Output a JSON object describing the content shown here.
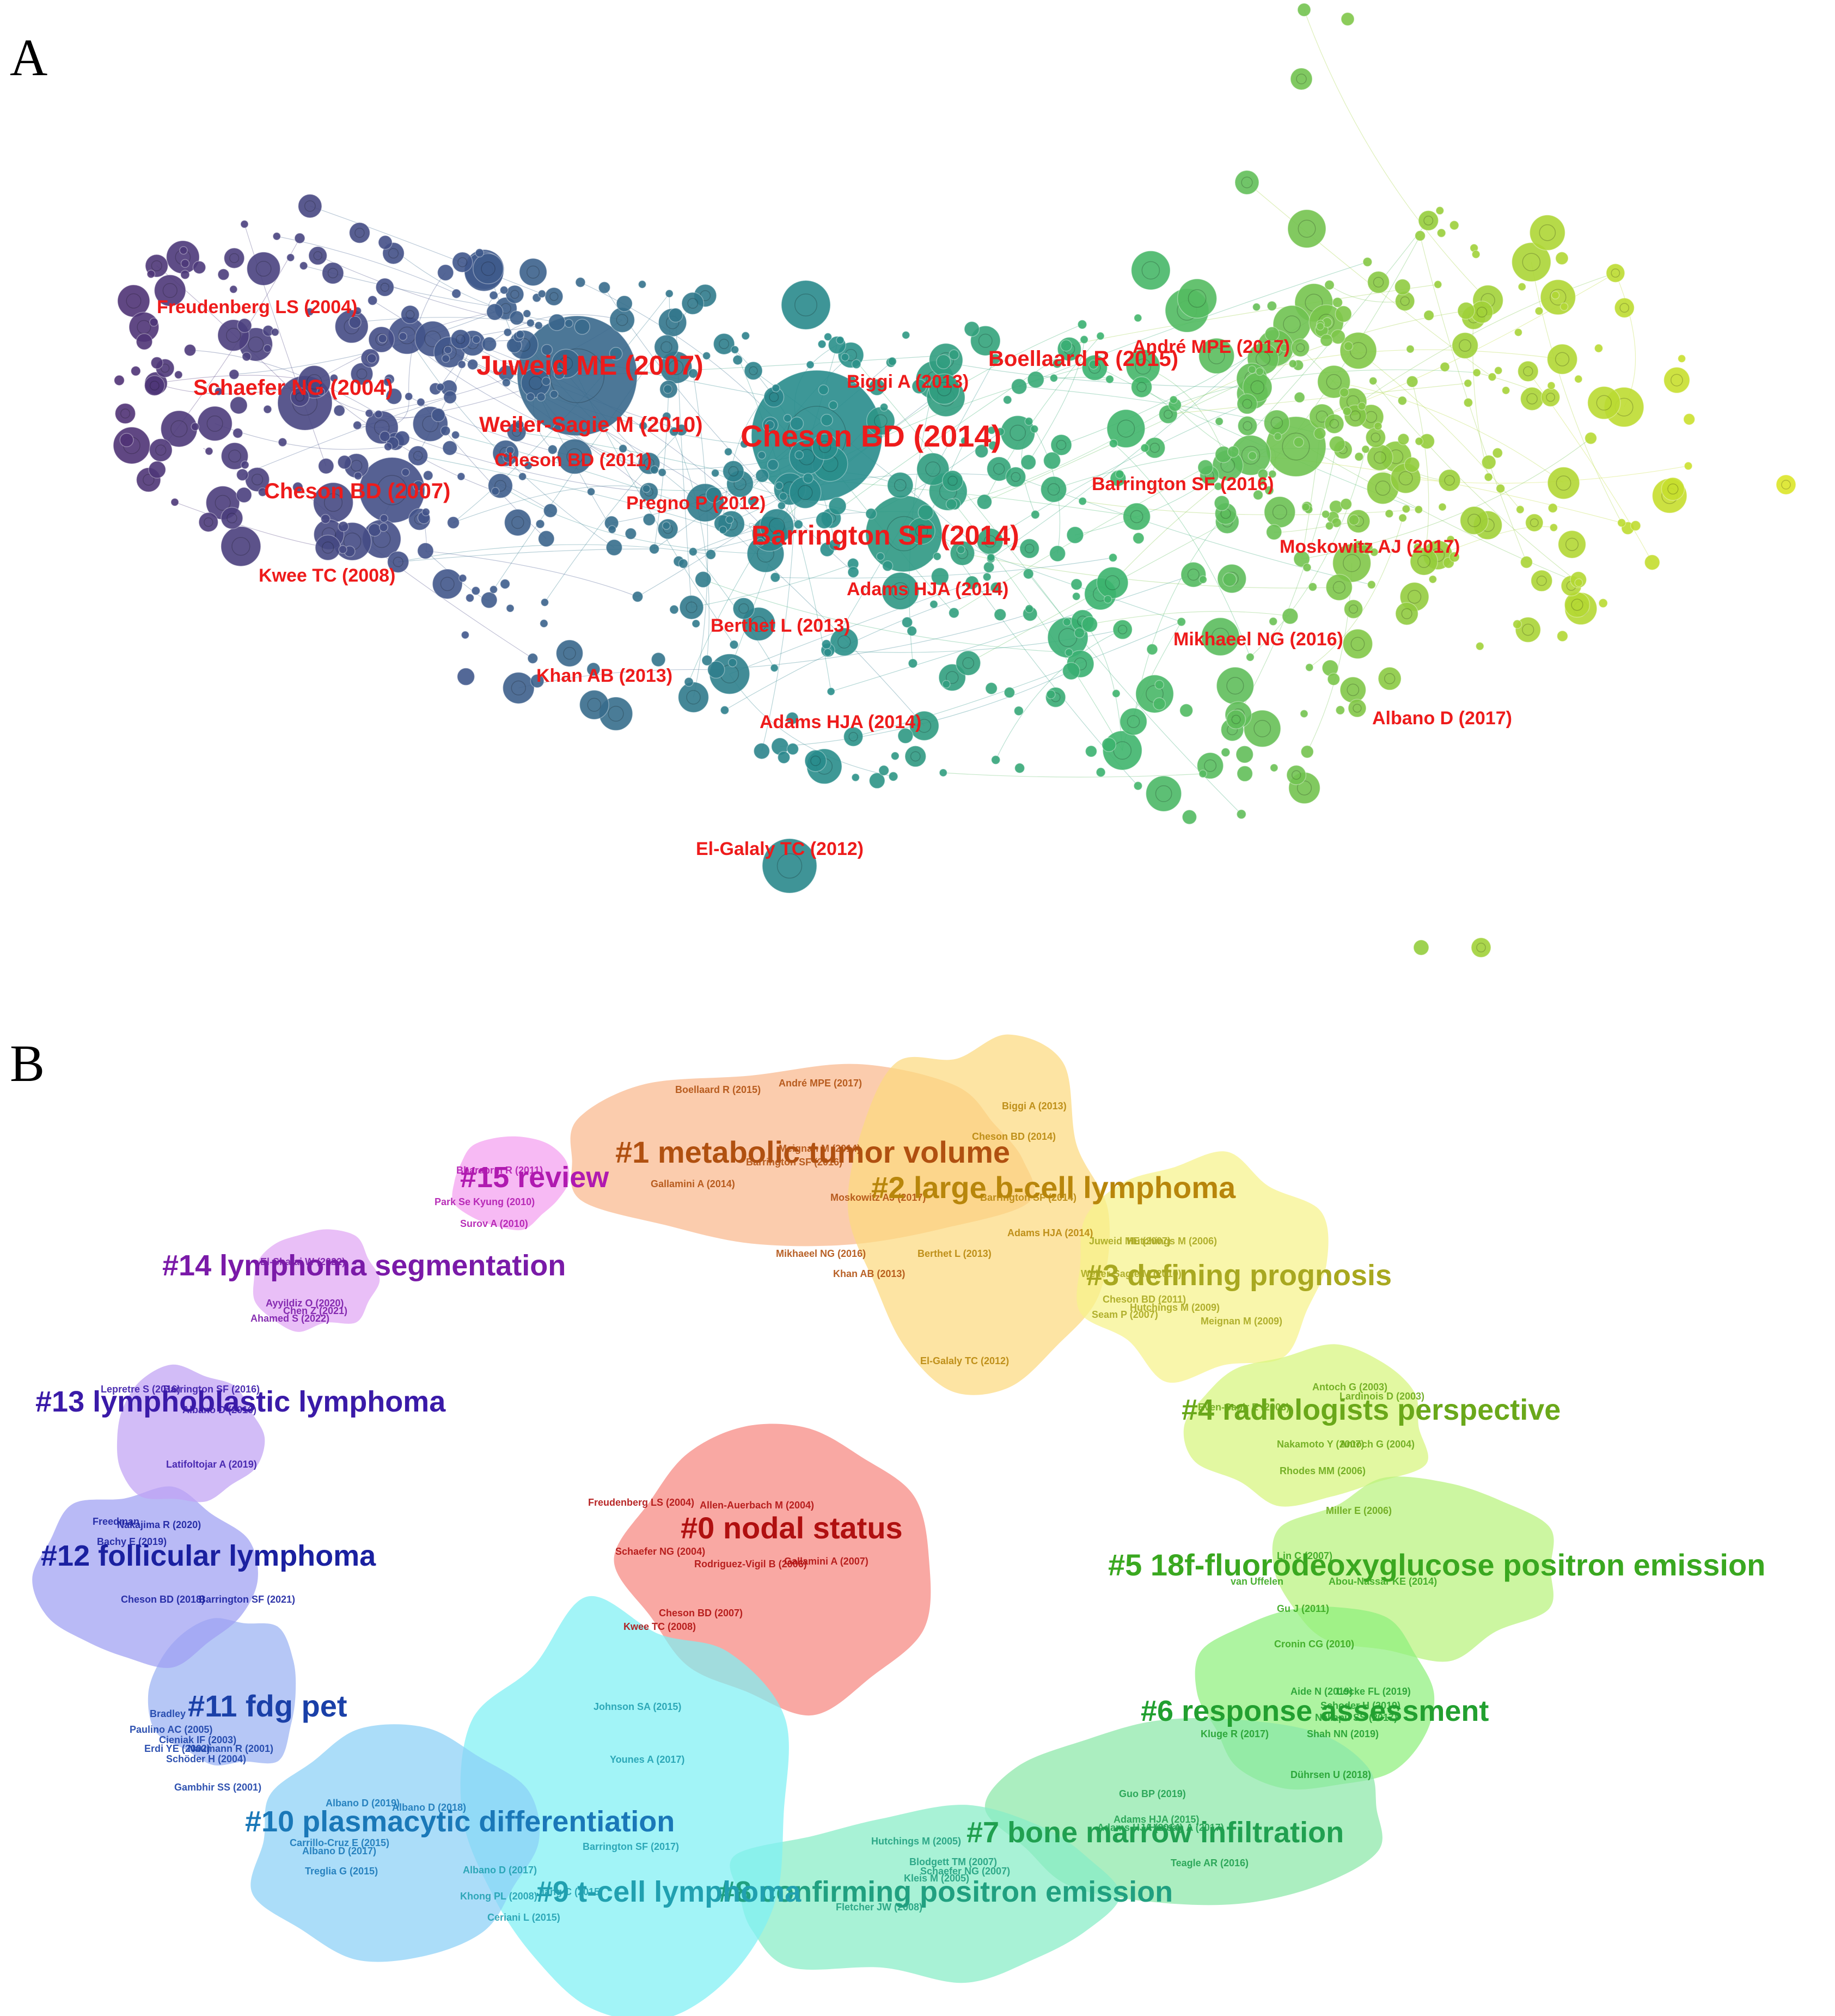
{
  "panel_a": {
    "letter": "A",
    "labels": [
      {
        "text": "Freudenberg LS (2004)",
        "size": "m"
      },
      {
        "text": "Schaefer NG (2004)",
        "size": "l"
      },
      {
        "text": "Juweid ME (2007)",
        "size": "xl"
      },
      {
        "text": "Weiler-Sagie M (2010)",
        "size": "l"
      },
      {
        "text": "Cheson BD (2011)",
        "size": "m"
      },
      {
        "text": "Cheson BD (2007)",
        "size": "l"
      },
      {
        "text": "Kwee TC (2008)",
        "size": "m"
      },
      {
        "text": "Pregno P (2012)",
        "size": "m"
      },
      {
        "text": "Biggi A (2013)",
        "size": "m"
      },
      {
        "text": "Cheson BD (2014)",
        "size": "xxl"
      },
      {
        "text": "Boellaard R (2015)",
        "size": "l"
      },
      {
        "text": "André MPE (2017)",
        "size": "m"
      },
      {
        "text": "Barrington SF (2016)",
        "size": "m"
      },
      {
        "text": "Barrington SF (2014)",
        "size": "xl"
      },
      {
        "text": "Moskowitz AJ (2017)",
        "size": "m"
      },
      {
        "text": "Adams HJA (2014)",
        "size": "m"
      },
      {
        "text": "Berthet L (2013)",
        "size": "m"
      },
      {
        "text": "Mikhaeel NG (2016)",
        "size": "m"
      },
      {
        "text": "Khan AB (2013)",
        "size": "m"
      },
      {
        "text": "Adams HJA (2014)",
        "size": "m"
      },
      {
        "text": "Albano D (2017)",
        "size": "m"
      },
      {
        "text": "El-Galaly TC (2012)",
        "size": "m"
      }
    ]
  },
  "panel_b": {
    "letter": "B",
    "clusters": [
      {
        "id": "#0",
        "title": "#0 nodal status",
        "fill": "#f7877f",
        "text_color": "#b01010",
        "refs": [
          "Freudenberg LS (2004)",
          "Allen-Auerbach M (2004)",
          "Schaefer NG (2004)",
          "Gallamini A (2007)",
          "Rodriguez-Vigil B (2006)",
          "Cheson BD (2007)",
          "Kwee TC (2008)"
        ]
      },
      {
        "id": "#1",
        "title": "#1 metabolic tumor volume",
        "fill": "#f9b98e",
        "text_color": "#b05010",
        "refs": [
          "Boellaard R (2015)",
          "André MPE (2017)",
          "Meignan M (2014)",
          "Barrington SF (2016)",
          "Gallamini A (2014)",
          "Moskowitz AJ (2017)",
          "Mikhaeel NG (2016)",
          "Khan AB (2013)"
        ]
      },
      {
        "id": "#2",
        "title": "#2 large b-cell lymphoma",
        "fill": "#fcd980",
        "text_color": "#b8860b",
        "refs": [
          "Biggi A (2013)",
          "Cheson BD (2014)",
          "Barrington SF (2014)",
          "Adams HJA (2014)",
          "Berthet L (2013)",
          "El-Galaly TC (2012)"
        ]
      },
      {
        "id": "#3",
        "title": "#3 defining prognosis",
        "fill": "#f6f28a",
        "text_color": "#a8a820",
        "refs": [
          "Juweid ME (2007)",
          "Hutchings M (2006)",
          "Weiler-Sagie M (2010)",
          "Cheson BD (2011)",
          "Hutchings M (2009)",
          "Seam P (2007)",
          "Meignan M (2009)"
        ]
      },
      {
        "id": "#4",
        "title": "#4 radiologists perspective",
        "fill": "#d7f57d",
        "text_color": "#6aa81a",
        "refs": [
          "Antoch G (2003)",
          "Lardinois D (2003)",
          "Even-Sapir E (2003)",
          "Nakamoto Y (2007)",
          "Antoch G (2004)",
          "Rhodes MM (2006)",
          "Miller E (2006)"
        ]
      },
      {
        "id": "#5",
        "title": "#5 18f-fluorodeoxyglucose positron emission",
        "fill": "#b9f27d",
        "text_color": "#3aa820",
        "refs": [
          "Lin C (2007)",
          "van Uffelen",
          "Abou-Nassar KE (2014)",
          "Gu J (2011)",
          "Cronin CG (2010)"
        ]
      },
      {
        "id": "#6",
        "title": "#6 response assessment",
        "fill": "#8ff07d",
        "text_color": "#22a030",
        "refs": [
          "Aide N (2019)",
          "Locke FL (2019)",
          "Schoder H (2019)",
          "Kluge R (2017)",
          "Shah NN (2019)",
          "Nellapu SS (2017)",
          "Dührsen U (2018)"
        ]
      },
      {
        "id": "#7",
        "title": "#7 bone marrow infiltration",
        "fill": "#8ae8a8",
        "text_color": "#20a050",
        "refs": [
          "Guo BP (2019)",
          "Adams HJA (2015)",
          "Hassan A (2017)",
          "Teagle AR (2016)",
          "Adams HJA (2014)"
        ]
      },
      {
        "id": "#8",
        "title": "#8 confirming positron emission",
        "fill": "#86edc6",
        "text_color": "#20a080",
        "refs": [
          "Hutchings M (2005)",
          "Blodgett TM (2007)",
          "Schaefer NG (2007)",
          "Kleis M (2005)",
          "Fletcher JW (2008)"
        ]
      },
      {
        "id": "#9",
        "title": "#9 t-cell lymphoma",
        "fill": "#7ef0f4",
        "text_color": "#20a0b0",
        "refs": [
          "Johnson SA (2015)",
          "Younes A (2017)",
          "Barrington SF (2017)",
          "Albano D (2017)",
          "Khong PL (2008)",
          "Jiang C (2015)",
          "Ceriani L (2015)"
        ]
      },
      {
        "id": "#10",
        "title": "#10 plasmacytic differentiation",
        "fill": "#8ad0f6",
        "text_color": "#1a78b8",
        "refs": [
          "Albano D (2019)",
          "Albano D (2018)",
          "Carrillo-Cruz E (2015)",
          "Albano D (2017)",
          "Treglia G (2015)"
        ]
      },
      {
        "id": "#11",
        "title": "#11 fdg pet",
        "fill": "#9ab2f2",
        "text_color": "#1a40a8",
        "refs": [
          "Bradley",
          "Paulino AC (2005)",
          "Cieniak IF (2003)",
          "Erdi YE (2002)",
          "Naumann R (2001)",
          "Schöder H (2004)",
          "Gambhir SS (2001)"
        ]
      },
      {
        "id": "#12",
        "title": "#12 follicular lymphoma",
        "fill": "#9ea0f2",
        "text_color": "#1a20a0",
        "refs": [
          "Freedman",
          "Nakajima R (2020)",
          "Bachy E (2019)",
          "Cheson BD (2018)",
          "Barrington SF (2021)"
        ]
      },
      {
        "id": "#13",
        "title": "#13 lymphoblastic lymphoma",
        "fill": "#c0a2f4",
        "text_color": "#3a1aa8",
        "refs": [
          "Lepretre S (2016)",
          "Barrington SF (2016)",
          "Albano D (2016)",
          "Latifoltojar A (2019)"
        ]
      },
      {
        "id": "#14",
        "title": "#14 lymphoma segmentation",
        "fill": "#e0a6f4",
        "text_color": "#7a1aa8",
        "refs": [
          "El-Shafai W (2022)",
          "Ayyildiz O (2020)",
          "Chen Z (2021)",
          "Ahamed S (2022)"
        ]
      },
      {
        "id": "#15",
        "title": "#15 review",
        "fill": "#f4a0f0",
        "text_color": "#b01ab0",
        "refs": [
          "Bharaprm R (2011)",
          "Park Se Kyung (2010)",
          "Surov A (2010)"
        ]
      }
    ]
  }
}
